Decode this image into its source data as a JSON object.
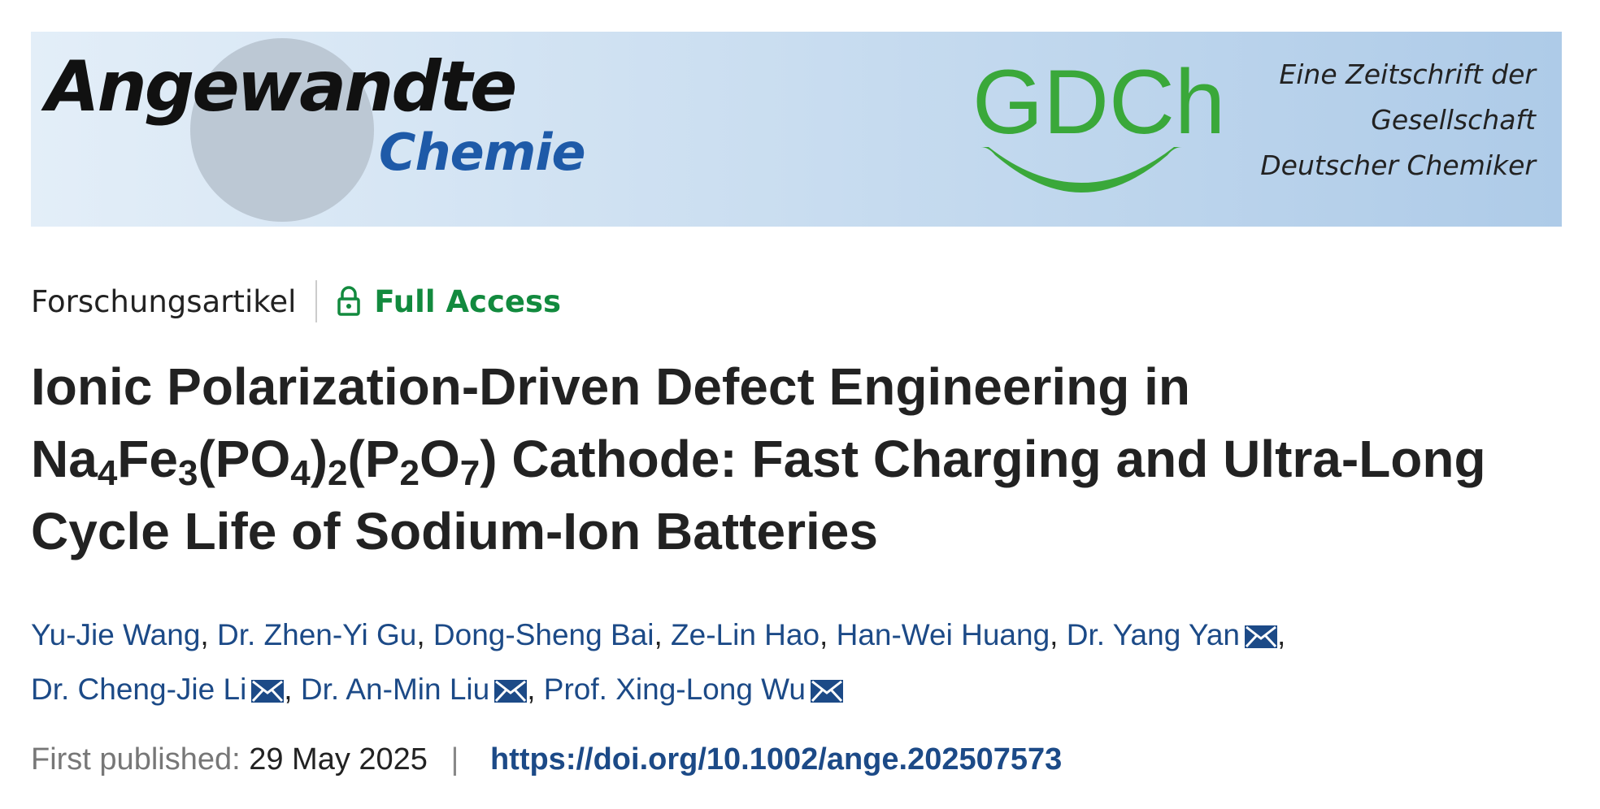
{
  "banner": {
    "logo_main": "Angewandte",
    "logo_sub": "Chemie",
    "society": "GDCh",
    "tagline": [
      "Eine Zeitschrift der",
      "Gesellschaft",
      "Deutscher Chemiker"
    ]
  },
  "meta": {
    "article_type": "Forschungsartikel",
    "access": "Full Access"
  },
  "title": {
    "lines": [
      [
        {
          "text": "Ionic Polarization-Driven Defect Engineering in"
        }
      ],
      [
        {
          "text": "Na"
        },
        {
          "text": "4",
          "sub": true
        },
        {
          "text": "Fe"
        },
        {
          "text": "3",
          "sub": true
        },
        {
          "text": "(PO"
        },
        {
          "text": "4",
          "sub": true
        },
        {
          "text": ")"
        },
        {
          "text": "2",
          "sub": true
        },
        {
          "text": "(P"
        },
        {
          "text": "2",
          "sub": true
        },
        {
          "text": "O"
        },
        {
          "text": "7",
          "sub": true
        },
        {
          "text": ") Cathode: Fast Charging and Ultra-Long"
        }
      ],
      [
        {
          "text": "Cycle Life of Sodium-Ion Batteries"
        }
      ]
    ]
  },
  "authors": {
    "separator": ",",
    "lines": [
      [
        {
          "name": "Yu-Jie Wang",
          "email": false
        },
        {
          "name": "Dr. Zhen-Yi Gu",
          "email": false
        },
        {
          "name": "Dong-Sheng Bai",
          "email": false
        },
        {
          "name": "Ze-Lin Hao",
          "email": false
        },
        {
          "name": "Han-Wei Huang",
          "email": false
        },
        {
          "name": "Dr. Yang Yan",
          "email": true
        }
      ],
      [
        {
          "name": "Dr. Cheng-Jie Li",
          "email": true
        },
        {
          "name": "Dr. An-Min Liu",
          "email": true
        },
        {
          "name": "Prof. Xing-Long Wu",
          "email": true
        }
      ]
    ]
  },
  "publication": {
    "label": "First published:",
    "date": "29 May 2025",
    "divider": "|",
    "doi": "https://doi.org/10.1002/ange.202507573"
  }
}
